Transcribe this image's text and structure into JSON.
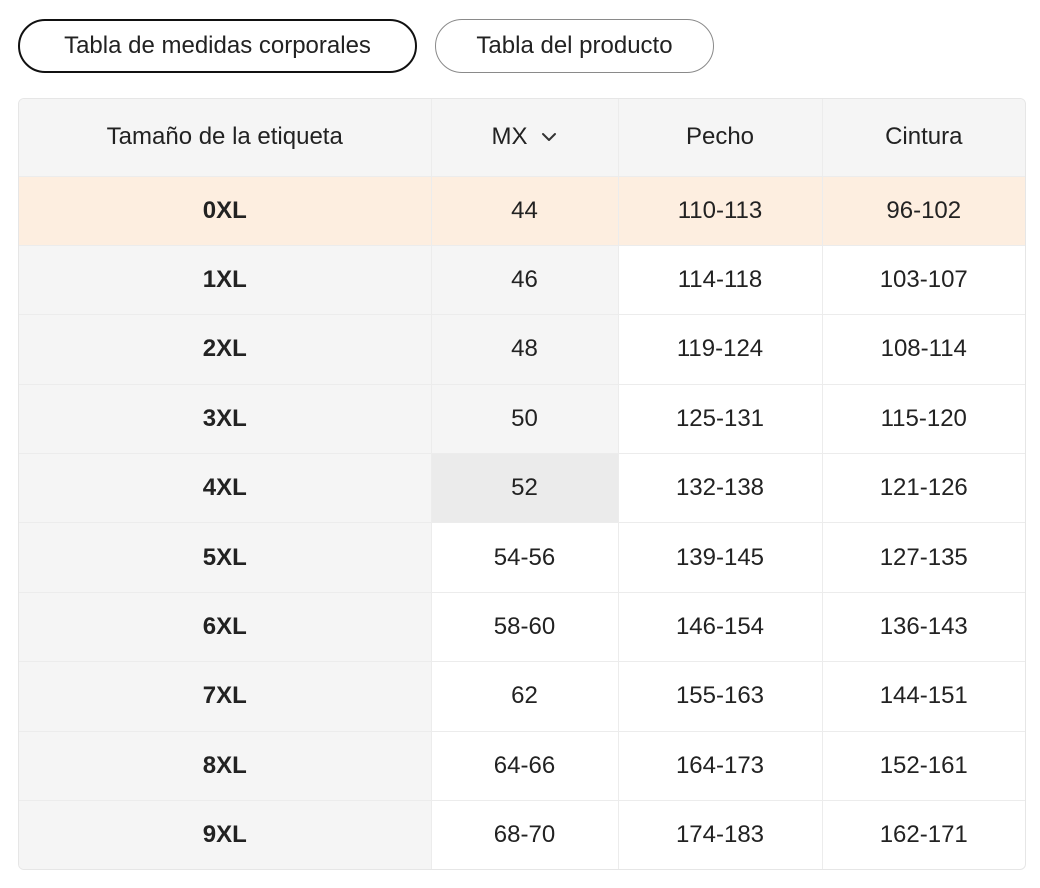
{
  "tabs": {
    "body_chart": "Tabla de medidas corporales",
    "product_chart": "Tabla del producto"
  },
  "table": {
    "headers": {
      "size": "Tamaño de la etiqueta",
      "mx": "MX",
      "chest": "Pecho",
      "waist": "Cintura"
    },
    "rows": [
      {
        "size": "0XL",
        "mx": "44",
        "chest": "110-113",
        "waist": "96-102"
      },
      {
        "size": "1XL",
        "mx": "46",
        "chest": "114-118",
        "waist": "103-107"
      },
      {
        "size": "2XL",
        "mx": "48",
        "chest": "119-124",
        "waist": "108-114"
      },
      {
        "size": "3XL",
        "mx": "50",
        "chest": "125-131",
        "waist": "115-120"
      },
      {
        "size": "4XL",
        "mx": "52",
        "chest": "132-138",
        "waist": "121-126"
      },
      {
        "size": "5XL",
        "mx": "54-56",
        "chest": "139-145",
        "waist": "127-135"
      },
      {
        "size": "6XL",
        "mx": "58-60",
        "chest": "146-154",
        "waist": "136-143"
      },
      {
        "size": "7XL",
        "mx": "62",
        "chest": "155-163",
        "waist": "144-151"
      },
      {
        "size": "8XL",
        "mx": "64-66",
        "chest": "164-173",
        "waist": "152-161"
      },
      {
        "size": "9XL",
        "mx": "68-70",
        "chest": "174-183",
        "waist": "162-171"
      }
    ]
  },
  "icons": {
    "mx_dropdown": "chevron-down-icon"
  },
  "colors": {
    "highlight_row": "#fdeee0",
    "header_bg": "#f5f5f5",
    "active_tab_border": "#111111"
  }
}
